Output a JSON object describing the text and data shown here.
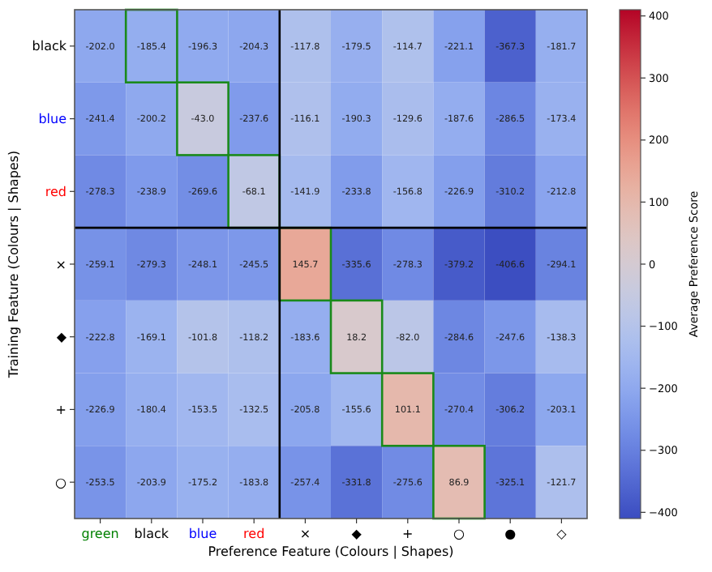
{
  "chart_data": {
    "type": "heatmap",
    "xlabel": "Preference Feature (Colours | Shapes)",
    "ylabel": "Training Feature (Colours | Shapes)",
    "clabel": "Average Preference Score",
    "categories": [
      "green",
      "black",
      "blue",
      "red",
      "×",
      "◆",
      "+",
      "○",
      "●",
      "◇"
    ],
    "y_categories": [
      "black",
      "blue",
      "red",
      "×",
      "◆",
      "+",
      "○"
    ],
    "cells": [
      [
        -202.0,
        -185.4,
        -196.3,
        -204.3,
        -117.8,
        -179.5,
        -114.7,
        -221.1,
        -367.3,
        -181.7
      ],
      [
        -241.4,
        -200.2,
        -43.0,
        -237.6,
        -116.1,
        -190.3,
        -129.6,
        -187.6,
        -286.5,
        -173.4
      ],
      [
        -278.3,
        -238.9,
        -269.6,
        -68.1,
        -141.9,
        -233.8,
        -156.8,
        -226.9,
        -310.2,
        -212.8
      ],
      [
        -259.1,
        -279.3,
        -248.1,
        -245.5,
        145.7,
        -335.6,
        -278.3,
        -379.2,
        -406.6,
        -294.1
      ],
      [
        -222.8,
        -169.1,
        -101.8,
        -118.2,
        -183.6,
        18.2,
        -82.0,
        -284.6,
        -247.6,
        -138.3
      ],
      [
        -226.9,
        -180.4,
        -153.5,
        -132.5,
        -205.8,
        -155.6,
        101.1,
        -270.4,
        -306.2,
        -203.1
      ],
      [
        -253.5,
        -203.9,
        -175.2,
        -183.8,
        -257.4,
        -331.8,
        -275.6,
        86.9,
        -325.1,
        -121.7
      ]
    ],
    "cell_labels": [
      [
        "-202.0",
        "-185.4",
        "-196.3",
        "-204.3",
        "-117.8",
        "-179.5",
        "-114.7",
        "-221.1",
        "-367.3",
        "-181.7"
      ],
      [
        "-241.4",
        "-200.2",
        "-43.0",
        "-237.6",
        "-116.1",
        "-190.3",
        "-129.6",
        "-187.6",
        "-286.5",
        "-173.4"
      ],
      [
        "-278.3",
        "-238.9",
        "-269.6",
        "-68.1",
        "-141.9",
        "-233.8",
        "-156.8",
        "-226.9",
        "-310.2",
        "-212.8"
      ],
      [
        "-259.1",
        "-279.3",
        "-248.1",
        "-245.5",
        "145.7",
        "-335.6",
        "-278.3",
        "-379.2",
        "-406.6",
        "-294.1"
      ],
      [
        "-222.8",
        "-169.1",
        "-101.8",
        "-118.2",
        "-183.6",
        "18.2",
        "-82.0",
        "-284.6",
        "-247.6",
        "-138.3"
      ],
      [
        "-226.9",
        "-180.4",
        "-153.5",
        "-132.5",
        "-205.8",
        "-155.6",
        "101.1",
        "-270.4",
        "-306.2",
        "-203.1"
      ],
      [
        "-253.5",
        "-203.9",
        "-175.2",
        "-183.8",
        "-257.4",
        "-331.8",
        "-275.6",
        "86.9",
        "-325.1",
        "-121.7"
      ]
    ],
    "clim": [
      -410,
      410
    ],
    "cticks": [
      -400,
      -300,
      -200,
      -100,
      0,
      100,
      200,
      300,
      400
    ]
  }
}
